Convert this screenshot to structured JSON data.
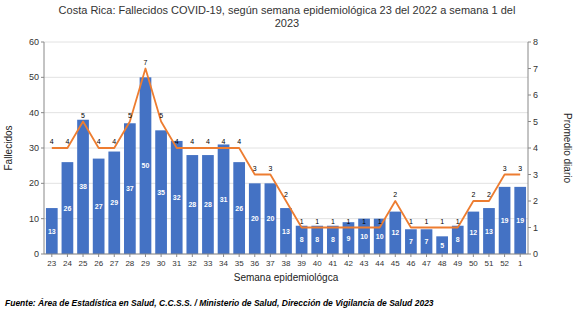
{
  "chart_data": {
    "type": "bar",
    "title": "Costa Rica: Fallecidos COVID-19, según semana epidemiológica 23 del 2022 a semana 1 del\n2023",
    "xlabel": "Semana epidemiológca",
    "ylabel": "Fallecidos",
    "y2label": "Promedio diario",
    "footnote": "Fuente: Área de Estadística en Salud, C.C.S.S. / Ministerio de Salud, Dirección de Vigilancia de Salud 2023",
    "categories": [
      "23",
      "24",
      "25",
      "26",
      "27",
      "28",
      "29",
      "30",
      "31",
      "32",
      "33",
      "34",
      "35",
      "36",
      "37",
      "38",
      "39",
      "40",
      "41",
      "42",
      "43",
      "44",
      "45",
      "46",
      "47",
      "48",
      "49",
      "50",
      "51",
      "52",
      "1"
    ],
    "series": [
      {
        "type": "bar",
        "color": "#4472C4",
        "values": [
          13,
          26,
          38,
          27,
          29,
          37,
          50,
          35,
          32,
          28,
          28,
          31,
          26,
          20,
          20,
          13,
          8,
          8,
          8,
          9,
          10,
          10,
          12,
          7,
          7,
          5,
          8,
          12,
          13,
          19,
          19
        ]
      },
      {
        "type": "line",
        "color": "#ED7D31",
        "axis": "y2",
        "values": [
          4,
          4,
          5,
          4,
          4,
          5,
          7,
          5,
          4,
          4,
          4,
          4,
          4,
          3,
          3,
          2,
          1,
          1,
          1,
          1,
          1,
          1,
          2,
          1,
          1,
          1,
          1,
          2,
          2,
          3,
          3
        ]
      }
    ],
    "ylim": [
      0,
      60
    ],
    "yticks": [
      0,
      10,
      20,
      30,
      40,
      50,
      60
    ],
    "y2lim": [
      0,
      8
    ],
    "y2ticks": [
      0,
      1,
      2,
      3,
      4,
      5,
      6,
      7,
      8
    ],
    "grid": true,
    "data_labels": true
  }
}
